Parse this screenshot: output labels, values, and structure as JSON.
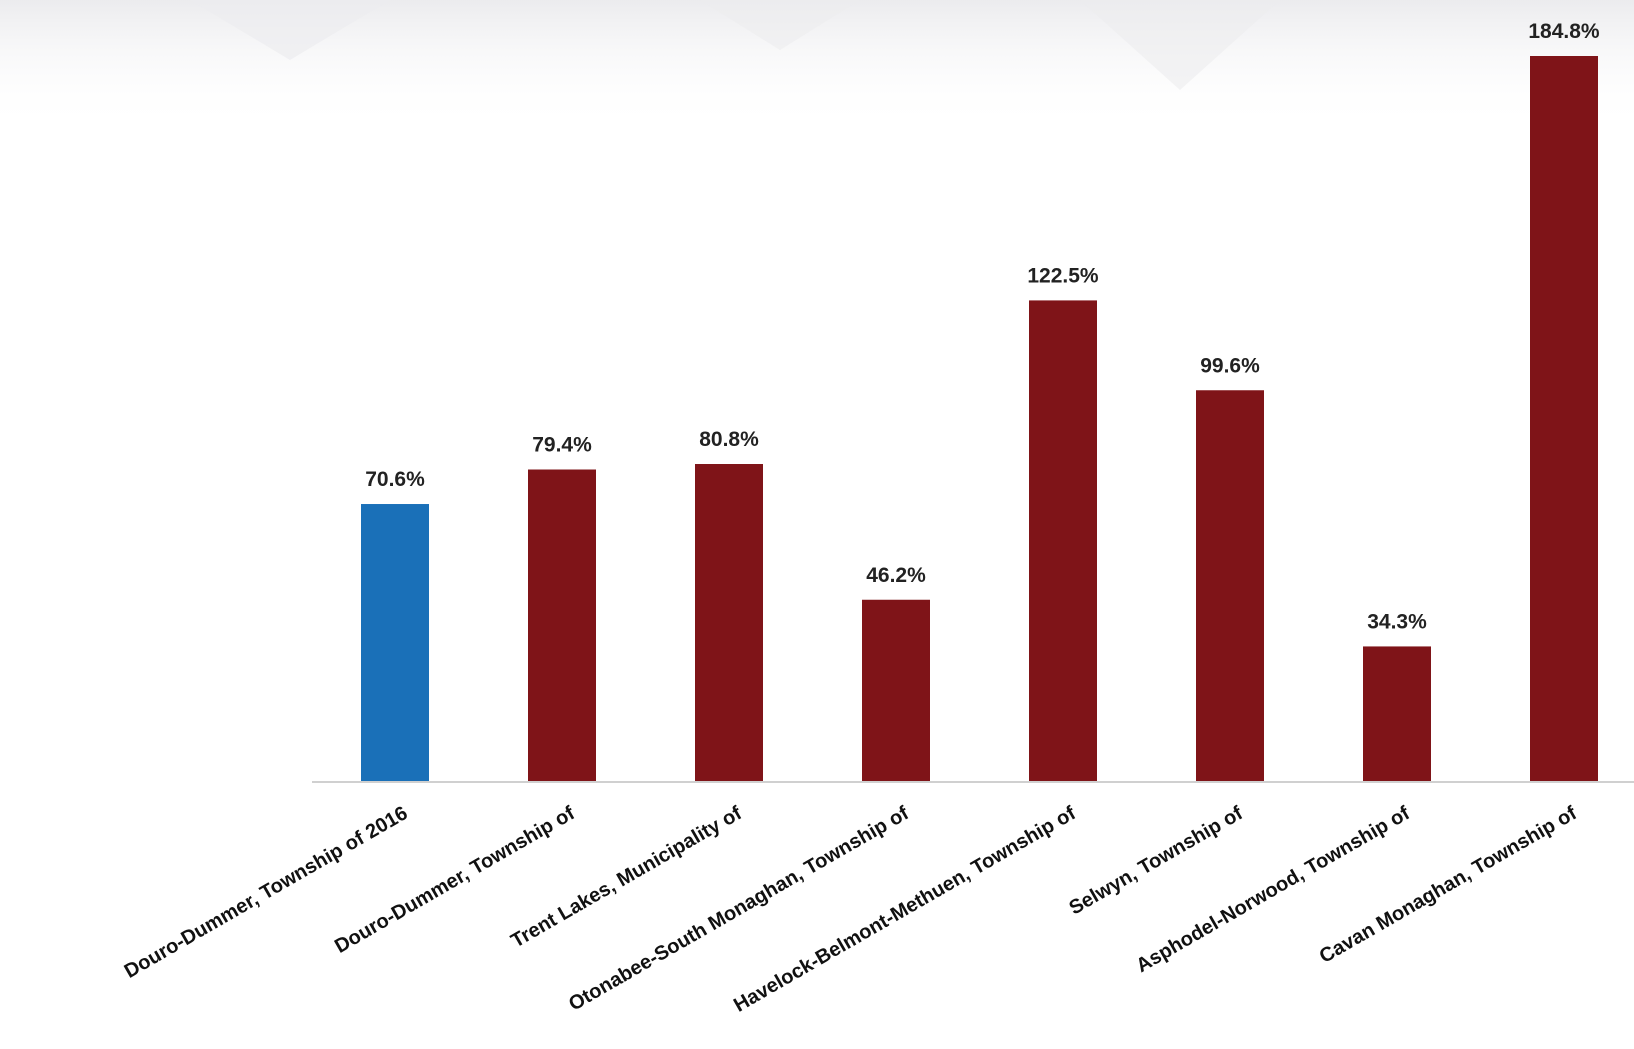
{
  "chart_data": {
    "type": "bar",
    "title": "",
    "xlabel": "",
    "ylabel": "",
    "categories": [
      "Douro-Dummer, Township of 2016",
      "Douro-Dummer, Township of",
      "Trent Lakes, Municipality of",
      "Otonabee-South Monaghan, Township of",
      "Havelock-Belmont-Methuen, Township of",
      "Selwyn, Township of",
      "Asphodel-Norwood, Township of",
      "Cavan Monaghan, Township of"
    ],
    "values": [
      70.6,
      79.4,
      80.8,
      46.2,
      122.5,
      99.6,
      34.3,
      184.8
    ],
    "data_labels": [
      "70.6%",
      "79.4%",
      "80.8%",
      "46.2%",
      "122.5%",
      "99.6%",
      "34.3%",
      "184.8%"
    ],
    "bar_colors": [
      "#1a70b8",
      "#7f1418",
      "#7f1418",
      "#7f1418",
      "#7f1418",
      "#7f1418",
      "#7f1418",
      "#7f1418"
    ],
    "ylim": [
      0,
      184.8
    ],
    "grid": false,
    "legend": "none"
  }
}
